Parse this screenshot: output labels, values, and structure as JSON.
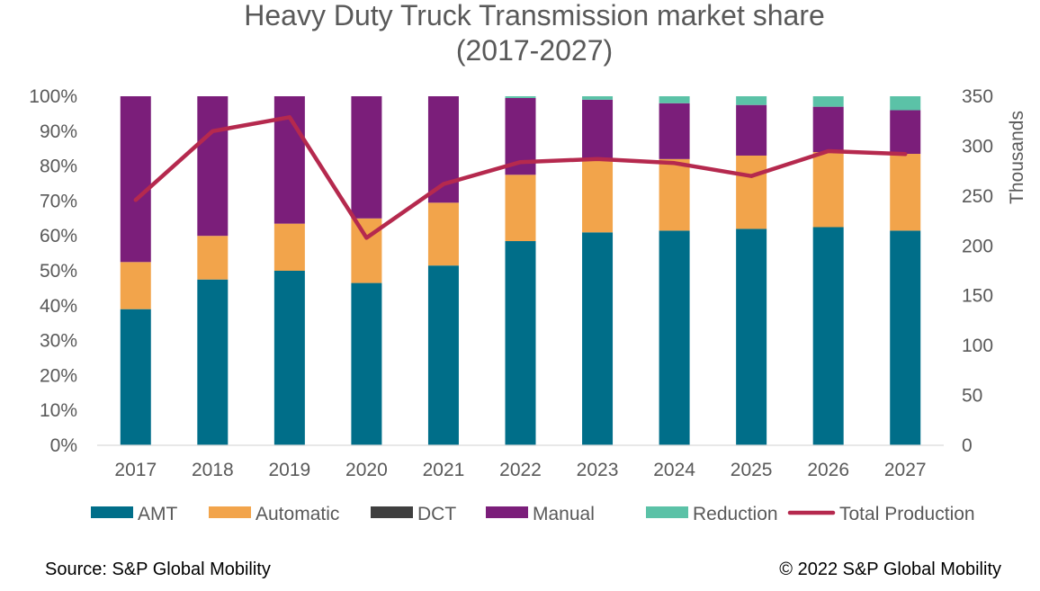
{
  "chart_data": {
    "type": "bar",
    "stacked": true,
    "title_line1": "Heavy Duty Truck Transmission market share",
    "title_line2": "(2017-2027)",
    "categories": [
      "2017",
      "2018",
      "2019",
      "2020",
      "2021",
      "2022",
      "2023",
      "2024",
      "2025",
      "2026",
      "2027"
    ],
    "series": [
      {
        "name": "AMT",
        "color": "#006E89",
        "values": [
          39,
          47.5,
          50,
          46.5,
          51.5,
          58.5,
          61,
          61.5,
          62,
          62.5,
          61.5
        ]
      },
      {
        "name": "Automatic",
        "color": "#F2A44B",
        "values": [
          13.5,
          12.5,
          13.5,
          18.5,
          18,
          19,
          20.5,
          20.5,
          21,
          21.5,
          22
        ]
      },
      {
        "name": "DCT",
        "color": "#3F3F3F",
        "values": [
          0,
          0,
          0,
          0,
          0,
          0,
          0,
          0,
          0,
          0,
          0
        ]
      },
      {
        "name": "Manual",
        "color": "#7B1E7A",
        "values": [
          47.5,
          40,
          36.5,
          35,
          30.5,
          22,
          17.5,
          16,
          14.5,
          13,
          12.5
        ]
      },
      {
        "name": "Reduction",
        "color": "#5BC2A7",
        "values": [
          0,
          0,
          0,
          0,
          0,
          0.5,
          1,
          2,
          2.5,
          3,
          4
        ]
      }
    ],
    "line_series": {
      "name": "Total Production",
      "color": "#B5294E",
      "axis": "right",
      "values": [
        246,
        315,
        329,
        208,
        262,
        284,
        287,
        283,
        270,
        295,
        292
      ]
    },
    "y_left": {
      "min": 0,
      "max": 100,
      "step": 10,
      "suffix": "%"
    },
    "y_right": {
      "min": 0,
      "max": 350,
      "step": 50,
      "label": "Thousands"
    },
    "grid": false,
    "legend_position": "bottom"
  },
  "footer": {
    "source": "Source: S&P Global Mobility",
    "copyright": "© 2022 S&P Global Mobility"
  }
}
